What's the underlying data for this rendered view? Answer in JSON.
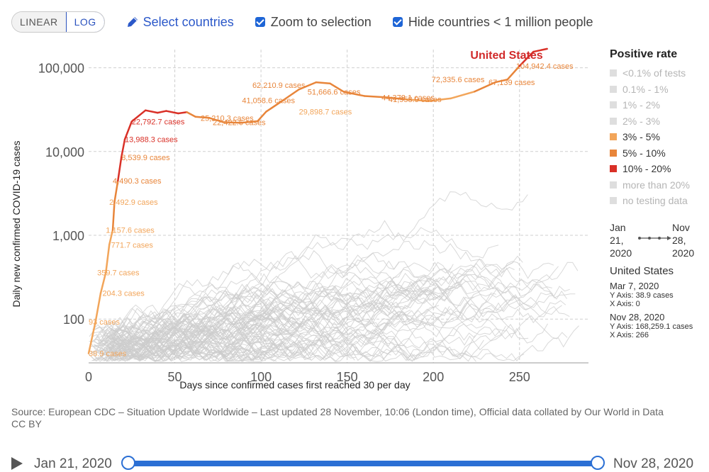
{
  "controls": {
    "linear_label": "LINEAR",
    "log_label": "LOG",
    "select_countries_label": "Select countries",
    "zoom_label": "Zoom to selection",
    "hide_label": "Hide countries < 1 million people"
  },
  "legend": {
    "title": "Positive rate",
    "items": [
      {
        "label": "<0.1% of tests",
        "color": "#dedede",
        "active": false
      },
      {
        "label": "0.1% - 1%",
        "color": "#dedede",
        "active": false
      },
      {
        "label": "1% - 2%",
        "color": "#dedede",
        "active": false
      },
      {
        "label": "2% - 3%",
        "color": "#dedede",
        "active": false
      },
      {
        "label": "3% - 5%",
        "color": "#f2a55a",
        "active": true
      },
      {
        "label": "5% - 10%",
        "color": "#e8853a",
        "active": true
      },
      {
        "label": "10% - 20%",
        "color": "#d93027",
        "active": true
      },
      {
        "label": "more than 20%",
        "color": "#dedede",
        "active": false
      },
      {
        "label": "no testing data",
        "color": "#dedede",
        "active": false
      }
    ]
  },
  "range": {
    "start_month": "Jan",
    "start_day": "21,",
    "start_year": "2020",
    "end_month": "Nov",
    "end_day": "28,",
    "end_year": "2020"
  },
  "info": {
    "country": "United States",
    "start_date": "Mar 7, 2020",
    "start_y": "Y Axis: 38.9 cases",
    "start_x": "X Axis: 0",
    "end_date": "Nov 28, 2020",
    "end_y": "Y Axis: 168,259.1 cases",
    "end_x": "X Axis: 266"
  },
  "source": "Source: European CDC – Situation Update Worldwide – Last updated 28 November, 10:06 (London time), Official data collated by Our World in Data",
  "license": "CC BY",
  "timeline": {
    "start_label": "Jan 21, 2020",
    "end_label": "Nov 28, 2020"
  },
  "chart_data": {
    "type": "line",
    "title": "",
    "xlabel": "Days since confirmed cases first reached 30 per day",
    "ylabel": "Daily new confirmed COVID-19 cases",
    "y_scale": "log",
    "xlim": [
      0,
      290
    ],
    "ylim": [
      30,
      200000
    ],
    "x_ticks": [
      0,
      50,
      100,
      150,
      200,
      250
    ],
    "y_ticks": [
      100,
      1000,
      10000,
      100000
    ],
    "y_tick_labels": [
      "100",
      "1,000",
      "10,000",
      "100,000"
    ],
    "grid": true,
    "highlighted_series": {
      "name": "United States",
      "colors": {
        "3% - 5%": "#f2a55a",
        "5% - 10%": "#e8853a",
        "10% - 20%": "#d93027"
      },
      "points": [
        {
          "x": 0,
          "y": 38.9,
          "band": "3% - 5%"
        },
        {
          "x": 4,
          "y": 93,
          "band": "3% - 5%"
        },
        {
          "x": 7,
          "y": 204.3,
          "band": "3% - 5%"
        },
        {
          "x": 10,
          "y": 359.7,
          "band": "3% - 5%"
        },
        {
          "x": 12,
          "y": 771.7,
          "band": "3% - 5%"
        },
        {
          "x": 14,
          "y": 1157.6,
          "band": "3% - 5%"
        },
        {
          "x": 15,
          "y": 2492.9,
          "band": "5% - 10%"
        },
        {
          "x": 17,
          "y": 4490.3,
          "band": "5% - 10%"
        },
        {
          "x": 19,
          "y": 8539.9,
          "band": "10% - 20%"
        },
        {
          "x": 21,
          "y": 13988.3,
          "band": "10% - 20%"
        },
        {
          "x": 25,
          "y": 22792.7,
          "band": "10% - 20%"
        },
        {
          "x": 33,
          "y": 31000,
          "band": "10% - 20%"
        },
        {
          "x": 40,
          "y": 29000,
          "band": "10% - 20%"
        },
        {
          "x": 45,
          "y": 30500,
          "band": "10% - 20%"
        },
        {
          "x": 52,
          "y": 28500,
          "band": "10% - 20%"
        },
        {
          "x": 57,
          "y": 29500,
          "band": "10% - 20%"
        },
        {
          "x": 62,
          "y": 26000,
          "band": "5% - 10%"
        },
        {
          "x": 70,
          "y": 25210.3,
          "band": "5% - 10%"
        },
        {
          "x": 78,
          "y": 22422.6,
          "band": "5% - 10%"
        },
        {
          "x": 88,
          "y": 22000,
          "band": "5% - 10%"
        },
        {
          "x": 98,
          "y": 23000,
          "band": "5% - 10%"
        },
        {
          "x": 103,
          "y": 29898.7,
          "band": "5% - 10%"
        },
        {
          "x": 113,
          "y": 41058.6,
          "band": "5% - 10%"
        },
        {
          "x": 122,
          "y": 55000,
          "band": "5% - 10%"
        },
        {
          "x": 132,
          "y": 67000,
          "band": "5% - 10%"
        },
        {
          "x": 140,
          "y": 65000,
          "band": "5% - 10%"
        },
        {
          "x": 148,
          "y": 51666.6,
          "band": "5% - 10%"
        },
        {
          "x": 160,
          "y": 46000,
          "band": "5% - 10%"
        },
        {
          "x": 172,
          "y": 44378.1,
          "band": "5% - 10%"
        },
        {
          "x": 184,
          "y": 41958.9,
          "band": "5% - 10%"
        },
        {
          "x": 197,
          "y": 40000,
          "band": "3% - 5%"
        },
        {
          "x": 210,
          "y": 43000,
          "band": "3% - 5%"
        },
        {
          "x": 224,
          "y": 52000,
          "band": "3% - 5%"
        },
        {
          "x": 236,
          "y": 67139,
          "band": "5% - 10%"
        },
        {
          "x": 243,
          "y": 72335.6,
          "band": "5% - 10%"
        },
        {
          "x": 250,
          "y": 104942.4,
          "band": "5% - 10%"
        },
        {
          "x": 258,
          "y": 155000,
          "band": "10% - 20%"
        },
        {
          "x": 266,
          "y": 168259.1,
          "band": "10% - 20%"
        }
      ],
      "data_labels": [
        {
          "text": "38.9 cases",
          "x": 0,
          "y": 38.9,
          "color": "#f2a55a"
        },
        {
          "text": "93 cases",
          "x": 0,
          "y": 93,
          "color": "#f2a55a"
        },
        {
          "text": "204.3 cases",
          "x": 8,
          "y": 204.3,
          "color": "#f2a55a"
        },
        {
          "text": "359.7 cases",
          "x": 5,
          "y": 359.7,
          "color": "#f2a55a"
        },
        {
          "text": "771.7 cases",
          "x": 13,
          "y": 771.7,
          "color": "#f2a55a"
        },
        {
          "text": "1,157.6 cases",
          "x": 10,
          "y": 1157.6,
          "color": "#f2a55a"
        },
        {
          "text": "2,492.9 cases",
          "x": 12,
          "y": 2492.9,
          "color": "#f2a55a"
        },
        {
          "text": "4,490.3 cases",
          "x": 14,
          "y": 4490.3,
          "color": "#e8853a"
        },
        {
          "text": "8,539.9 cases",
          "x": 19,
          "y": 8539.9,
          "color": "#e8853a"
        },
        {
          "text": "13,988.3 cases",
          "x": 21,
          "y": 13988.3,
          "color": "#d93027"
        },
        {
          "text": "22,792.7 cases",
          "x": 25,
          "y": 22792.7,
          "color": "#d93027"
        },
        {
          "text": "25,210.3 cases",
          "x": 65,
          "y": 25210.3,
          "color": "#e8853a"
        },
        {
          "text": "22,422.6 cases",
          "x": 72,
          "y": 22422.6,
          "color": "#e8853a"
        },
        {
          "text": "29,898.7 cases",
          "x": 122,
          "y": 29898.7,
          "color": "#f2a55a"
        },
        {
          "text": "41,058.6 cases",
          "x": 89,
          "y": 41058.6,
          "color": "#e8853a"
        },
        {
          "text": "62,210.9 cases",
          "x": 95,
          "y": 62210.9,
          "color": "#e8853a"
        },
        {
          "text": "51,666.6 cases",
          "x": 127,
          "y": 51666.6,
          "color": "#e8853a"
        },
        {
          "text": "44,378.1 cases",
          "x": 170,
          "y": 44378.1,
          "color": "#e8853a"
        },
        {
          "text": "41,958.9 cases",
          "x": 174,
          "y": 41958.9,
          "color": "#e8853a"
        },
        {
          "text": "72,335.6 cases",
          "x": 199,
          "y": 72335.6,
          "color": "#e8853a"
        },
        {
          "text": "104,942.4 cases",
          "x": 248,
          "y": 104942.4,
          "color": "#e8853a"
        },
        {
          "text": "67,139 cases",
          "x": 232,
          "y": 67139,
          "color": "#e8853a"
        }
      ]
    }
  }
}
